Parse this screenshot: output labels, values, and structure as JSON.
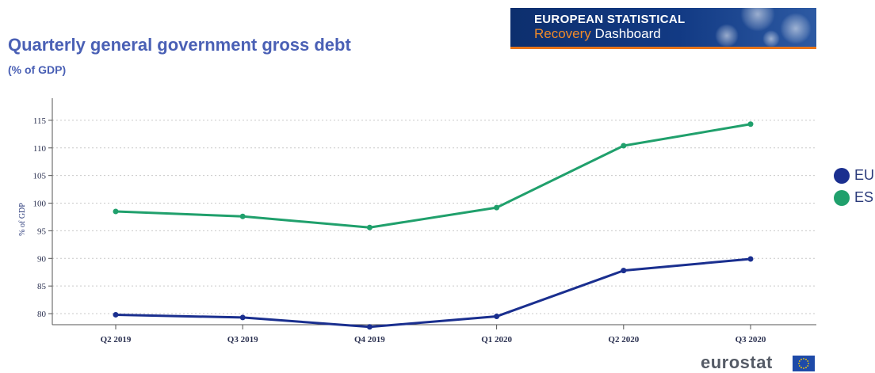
{
  "header": {
    "title": "Quarterly general government gross debt",
    "subtitle": "(% of GDP)"
  },
  "banner": {
    "line1": "EUROPEAN STATISTICAL",
    "line2_accent": "Recovery",
    "line2_rest": " Dashboard"
  },
  "logo": {
    "text": "eurostat",
    "icon": "eu-flag-icon"
  },
  "colors": {
    "EU": "#1a2f8f",
    "ES": "#20a06c",
    "title": "#4a60b5"
  },
  "chart_data": {
    "type": "line",
    "title": "Quarterly general government gross debt",
    "subtitle": "(% of GDP)",
    "ylabel": "% of GDP",
    "xlabel": "",
    "categories": [
      "Q2 2019",
      "Q3 2019",
      "Q4 2019",
      "Q1 2020",
      "Q2 2020",
      "Q3 2020"
    ],
    "ylim": [
      78,
      119
    ],
    "yticks": [
      80,
      85,
      90,
      95,
      100,
      105,
      110,
      115
    ],
    "grid": true,
    "legend_position": "right",
    "series": [
      {
        "name": "EU",
        "values": [
          79.8,
          79.3,
          77.6,
          79.5,
          87.8,
          89.9
        ]
      },
      {
        "name": "ES",
        "values": [
          98.5,
          97.6,
          95.6,
          99.2,
          110.4,
          114.3
        ]
      }
    ]
  }
}
